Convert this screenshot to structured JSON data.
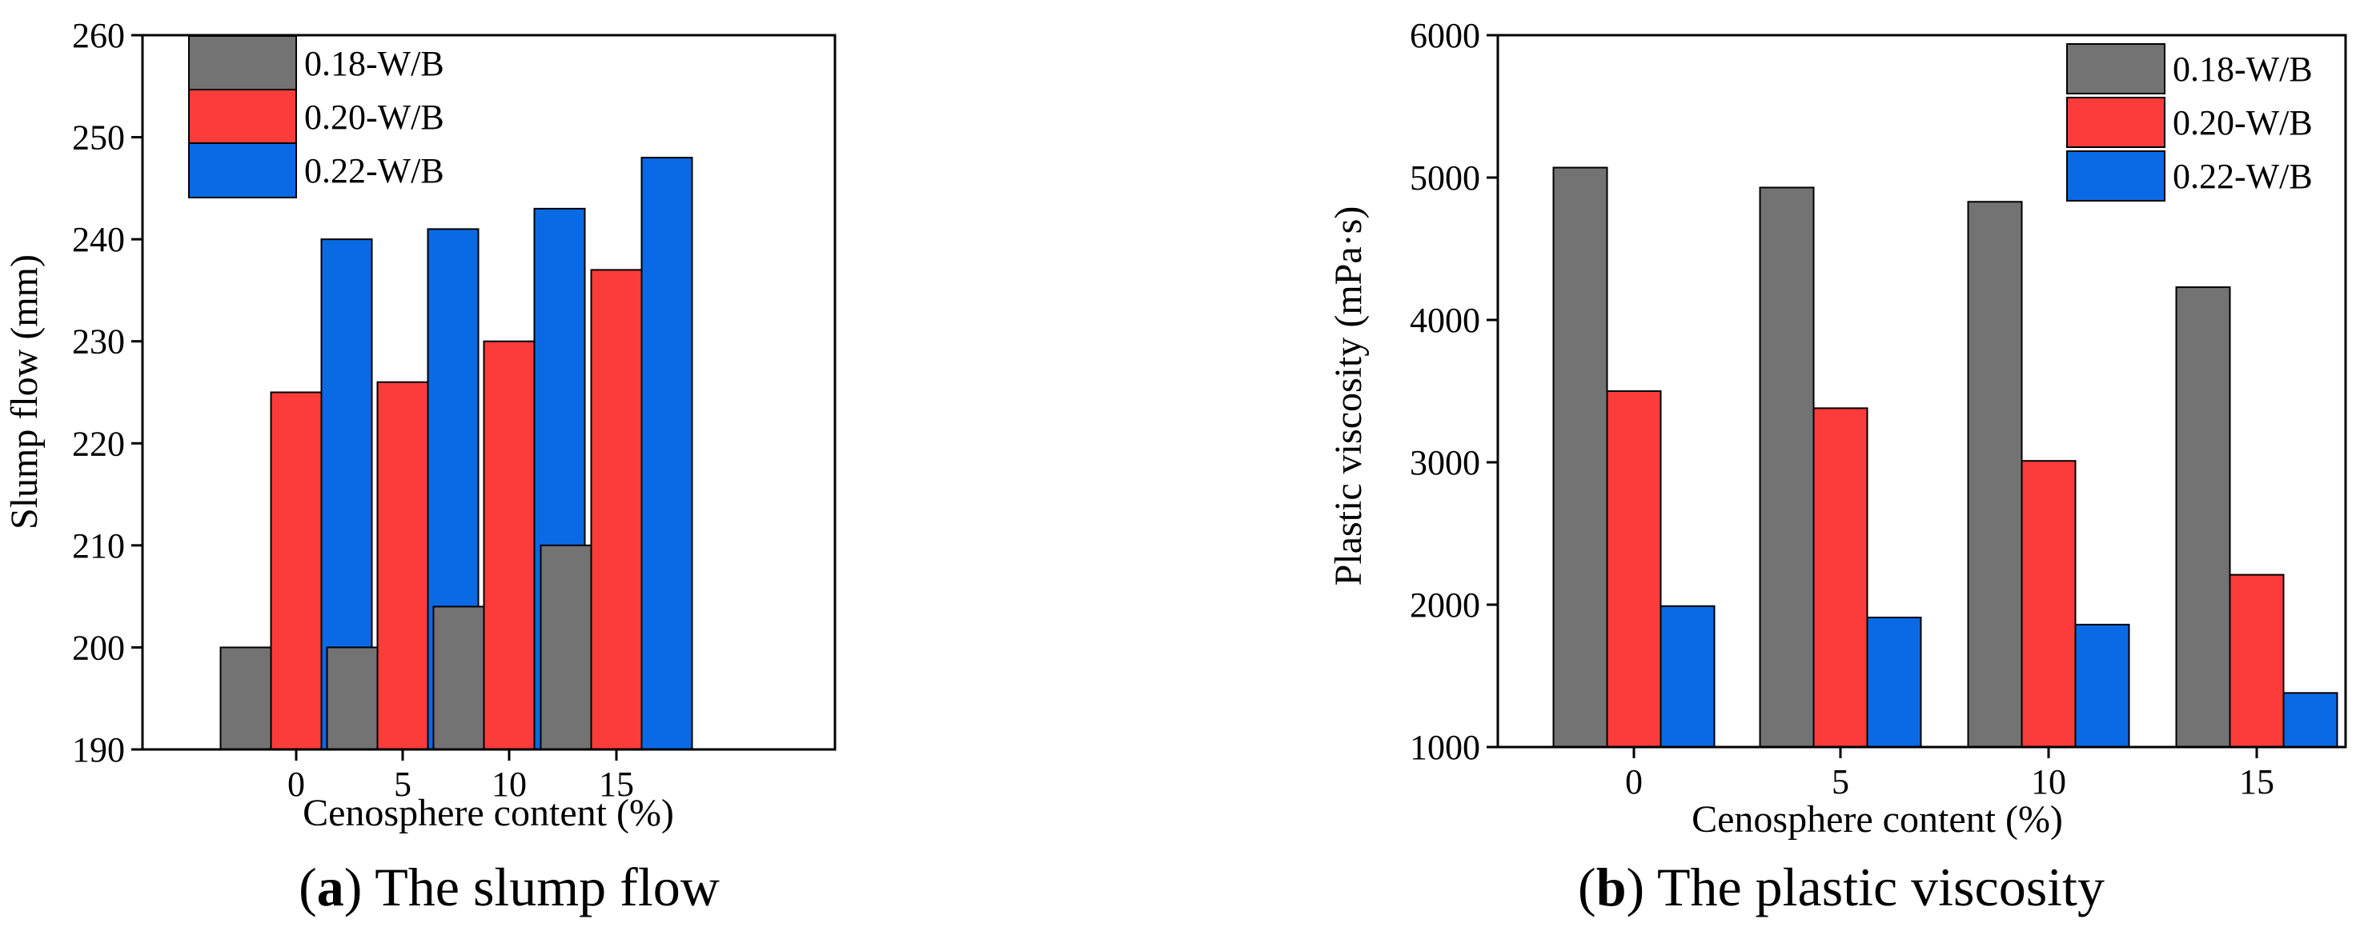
{
  "chart_data": [
    {
      "type": "bar",
      "panel": "a",
      "caption": {
        "letter": "a",
        "title": "The slump flow"
      },
      "categories": [
        "0",
        "5",
        "10",
        "15"
      ],
      "series": [
        {
          "name": "0.18-W/B",
          "color": "#737373",
          "values": [
            200,
            200,
            204,
            210
          ]
        },
        {
          "name": "0.20-W/B",
          "color": "#fc3b3b",
          "values": [
            225,
            226,
            230,
            237
          ]
        },
        {
          "name": "0.22-W/B",
          "color": "#0a6ae6",
          "values": [
            240,
            241,
            243,
            248
          ]
        }
      ],
      "xlabel": "Cenosphere content (%)",
      "ylabel": "Slump flow (mm)",
      "ylim": [
        190,
        260
      ],
      "yticks": [
        190,
        200,
        210,
        220,
        230,
        240,
        250,
        260
      ],
      "legend": "top-left",
      "grid": false
    },
    {
      "type": "bar",
      "panel": "b",
      "caption": {
        "letter": "b",
        "title": "The plastic viscosity"
      },
      "categories": [
        "0",
        "5",
        "10",
        "15"
      ],
      "series": [
        {
          "name": "0.18-W/B",
          "color": "#737373",
          "values": [
            5070,
            4930,
            4830,
            4230
          ]
        },
        {
          "name": "0.20-W/B",
          "color": "#fc3b3b",
          "values": [
            3500,
            3380,
            3010,
            2210
          ]
        },
        {
          "name": "0.22-W/B",
          "color": "#0a6ae6",
          "values": [
            1990,
            1910,
            1860,
            1380
          ]
        }
      ],
      "xlabel": "Cenosphere content (%)",
      "ylabel": "Plastic viscosity (mPa·s)",
      "ylim": [
        1000,
        6000
      ],
      "yticks": [
        1000,
        2000,
        3000,
        4000,
        5000,
        6000
      ],
      "legend": "top-right",
      "grid": false
    }
  ]
}
